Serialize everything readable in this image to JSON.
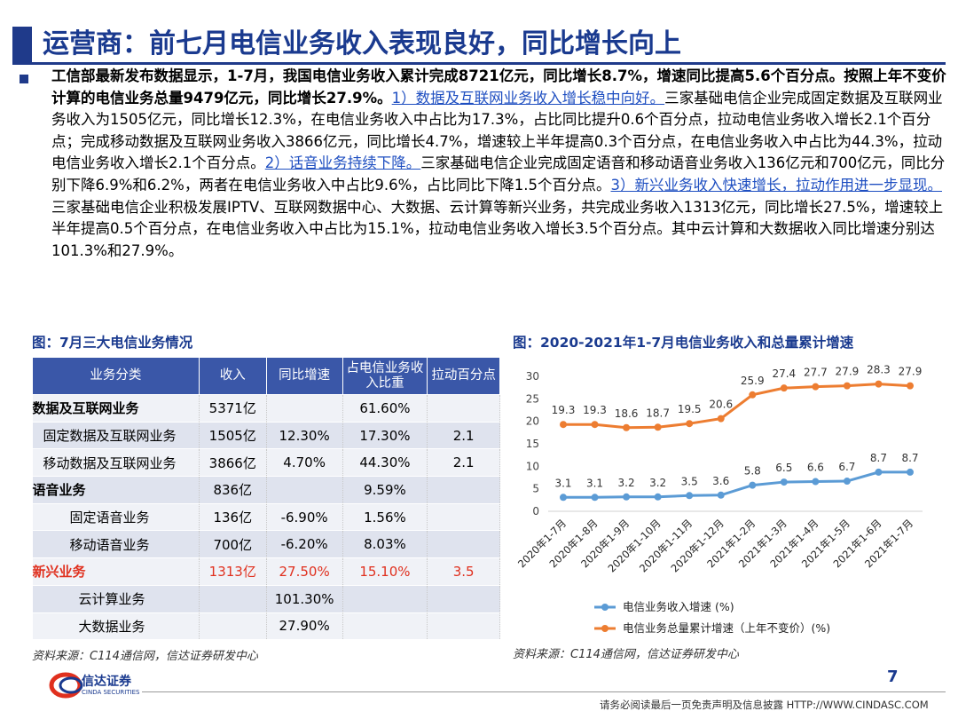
{
  "title": "运营商：前七月电信业务收入表现良好，同比增长向上",
  "para": {
    "p1": "工信部最新发布数据显示，1-7月，我国电信业务收入累计完成8721亿元，同比增长8.7%，增速同比提高5.6个百分点。按照上年不变价计算的电信业务总量9479亿元，同比增长27.9%。",
    "s1": "1）数据及互联网业务收入增长稳中向好。",
    "p2": "三家基础电信企业完成固定数据及互联网业务收入为1505亿元，同比增长12.3%，在电信业务收入中占比为17.3%，占比同比提升0.6个百分点，拉动电信业务收入增长2.1个百分点；完成移动数据及互联网业务收入3866亿元，同比增长4.7%，增速较上半年提高0.3个百分点，在电信业务收入中占比为44.3%，拉动电信业务收入增长2.1个百分点。",
    "s2": "2）话音业务持续下降。",
    "p3": "三家基础电信企业完成固定语音和移动语音业务收入136亿元和700亿元，同比分别下降6.9%和6.2%，两者在电信业务收入中占比9.6%，占比同比下降1.5个百分点。",
    "s3": "3）新兴业务收入快速增长，拉动作用进一步显现。",
    "p4": "三家基础电信企业积极发展IPTV、互联网数据中心、大数据、云计算等新兴业务，共完成业务收入1313亿元，同比增长27.5%，增速较上半年提高0.5个百分点，在电信业务收入中占比为15.1%，拉动电信业务收入增长3.5个百分点。其中云计算和大数据收入同比增速分别达101.3%和27.9%。"
  },
  "table": {
    "caption": "图：7月三大电信业务情况",
    "headers": [
      "业务分类",
      "收入",
      "同比增速",
      "占电信业务收入比重",
      "拉动百分点"
    ],
    "rows": [
      [
        "数据及互联网业务",
        "5371亿",
        "",
        "61.60%",
        ""
      ],
      [
        "固定数据及互联网业务",
        "1505亿",
        "12.30%",
        "17.30%",
        "2.1"
      ],
      [
        "移动数据及互联网业务",
        "3866亿",
        "4.70%",
        "44.30%",
        "2.1"
      ],
      [
        "语音业务",
        "836亿",
        "",
        "9.59%",
        ""
      ],
      [
        "固定语音业务",
        "136亿",
        "-6.90%",
        "1.56%",
        ""
      ],
      [
        "移动语音业务",
        "700亿",
        "-6.20%",
        "8.03%",
        ""
      ],
      [
        "新兴业务",
        "1313亿",
        "27.50%",
        "15.10%",
        "3.5"
      ],
      [
        "云计算业务",
        "",
        "101.30%",
        "",
        ""
      ],
      [
        "大数据业务",
        "",
        "27.90%",
        "",
        ""
      ]
    ],
    "source": "资料来源：C114通信网，信达证券研发中心"
  },
  "chart_caption": "图：2020-2021年1-7月电信业务收入和总量累计增速",
  "chart_source": "资料来源：C114通信网，信达证券研发中心",
  "chart_data": {
    "type": "line",
    "categories": [
      "2020年1-7月",
      "2020年1-8月",
      "2020年1-9月",
      "2020年1-10月",
      "2020年1-11月",
      "2020年1-12月",
      "2021年1-2月",
      "2021年1-3月",
      "2021年1-4月",
      "2021年1-5月",
      "2021年1-6月",
      "2021年1-7月"
    ],
    "series": [
      {
        "name": "电信业务收入增速 (%)",
        "color": "#5b9bd5",
        "values": [
          3.1,
          3.1,
          3.2,
          3.2,
          3.5,
          3.6,
          5.8,
          6.5,
          6.6,
          6.7,
          8.7,
          8.7
        ]
      },
      {
        "name": "电信业务总量累计增速（上年不变价）(%)",
        "color": "#ed7d31",
        "values": [
          19.3,
          19.3,
          18.6,
          18.7,
          19.5,
          20.6,
          25.9,
          27.4,
          27.7,
          27.9,
          28.3,
          27.9
        ]
      }
    ],
    "yticks": [
      "0",
      "5",
      "10",
      "15",
      "20",
      "25",
      "30"
    ],
    "ylim": [
      0,
      30
    ],
    "grid": false,
    "legend": "bottom"
  },
  "footer": {
    "page": "7",
    "disclaimer": "请务必阅读最后一页免责声明及信息披露 HTTP://WWW.CINDASC.COM",
    "logo_text": "信达证券",
    "logo_sub": "CINDA SECURITIES"
  }
}
